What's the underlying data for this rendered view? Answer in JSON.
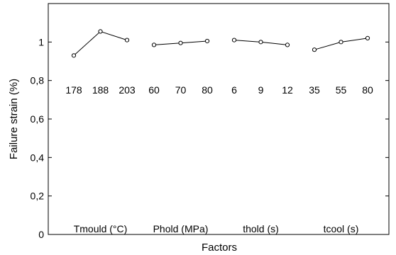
{
  "chart_data": {
    "type": "line",
    "xlabel": "Factors",
    "ylabel": "Failure strain  (%)",
    "ylim": [
      0,
      1.2
    ],
    "y_ticks": [
      0,
      0.2,
      0.4,
      0.6,
      0.8,
      1
    ],
    "y_tick_labels": [
      "0",
      "0,2",
      "0,4",
      "0,6",
      "0,8",
      "1"
    ],
    "grid": false,
    "legend": "none",
    "line_color": "#000000",
    "groups": [
      {
        "name": "Tmould (°C)",
        "levels": [
          "178",
          "188",
          "203"
        ],
        "values": [
          0.93,
          1.055,
          1.01
        ]
      },
      {
        "name": "Phold (MPa)",
        "levels": [
          "60",
          "70",
          "80"
        ],
        "values": [
          0.985,
          0.995,
          1.005
        ]
      },
      {
        "name": "thold (s)",
        "levels": [
          "6",
          "9",
          "12"
        ],
        "values": [
          1.01,
          1.0,
          0.985
        ]
      },
      {
        "name": "tcool (s)",
        "levels": [
          "35",
          "55",
          "80"
        ],
        "values": [
          0.96,
          1.0,
          1.02
        ]
      }
    ]
  }
}
